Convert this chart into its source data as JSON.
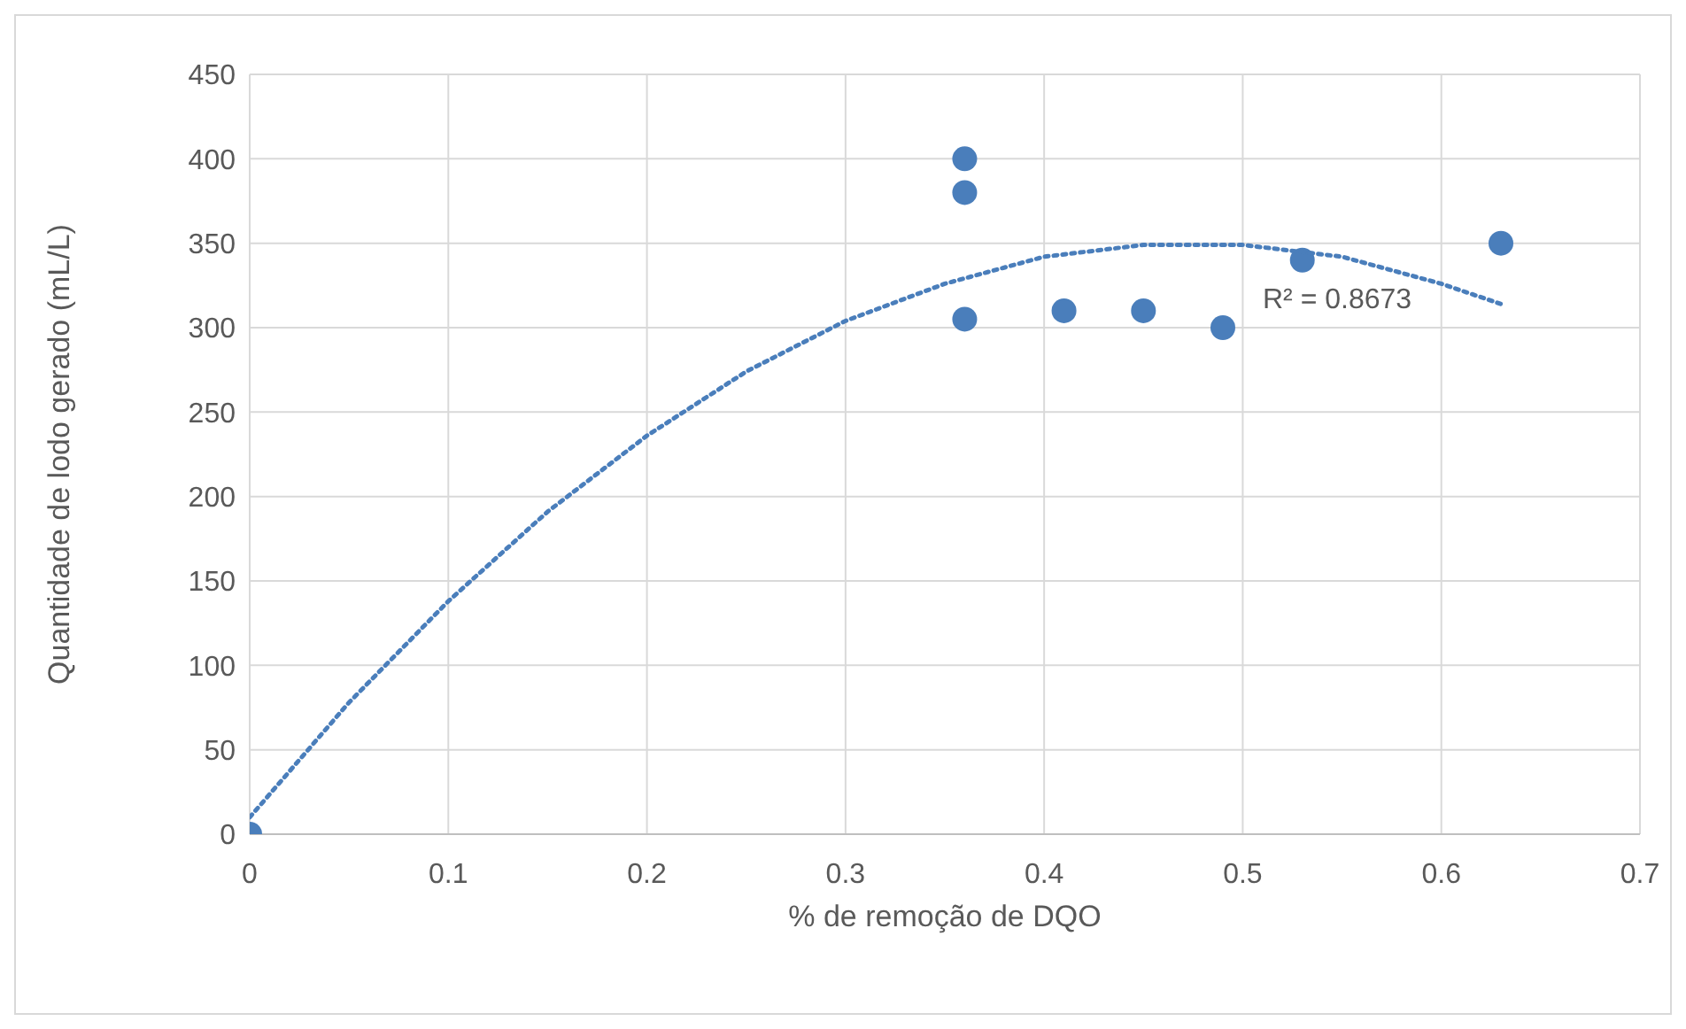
{
  "chart_data": {
    "type": "scatter",
    "xlabel": "% de remoção de DQO",
    "ylabel": "Quantidade de lodo gerado (mL/L)",
    "xlim": [
      0,
      0.7
    ],
    "xticks": [
      0,
      0.1,
      0.2,
      0.3,
      0.4,
      0.5,
      0.6,
      0.7
    ],
    "ylim": [
      0,
      450
    ],
    "yticks": [
      0,
      50,
      100,
      150,
      200,
      250,
      300,
      350,
      400,
      450
    ],
    "grid": true,
    "series": [
      {
        "type": "scatter",
        "color": "#4a7ebb",
        "marker": "circle",
        "x": [
          0,
          0.36,
          0.36,
          0.36,
          0.41,
          0.45,
          0.49,
          0.53,
          0.63
        ],
        "values": [
          0,
          400,
          380,
          305,
          310,
          310,
          300,
          340,
          350
        ]
      },
      {
        "type": "line",
        "color": "#4a7ebb",
        "marker": "none",
        "line_style": "dotted",
        "x": [
          0,
          0.05,
          0.1,
          0.15,
          0.2,
          0.25,
          0.3,
          0.35,
          0.4,
          0.45,
          0.5,
          0.55,
          0.6,
          0.63
        ],
        "values": [
          10,
          78,
          138,
          191,
          236,
          274,
          304,
          326,
          342,
          349,
          349,
          342,
          326,
          314
        ]
      }
    ],
    "annotations": [
      "R² = 0.8673"
    ]
  }
}
